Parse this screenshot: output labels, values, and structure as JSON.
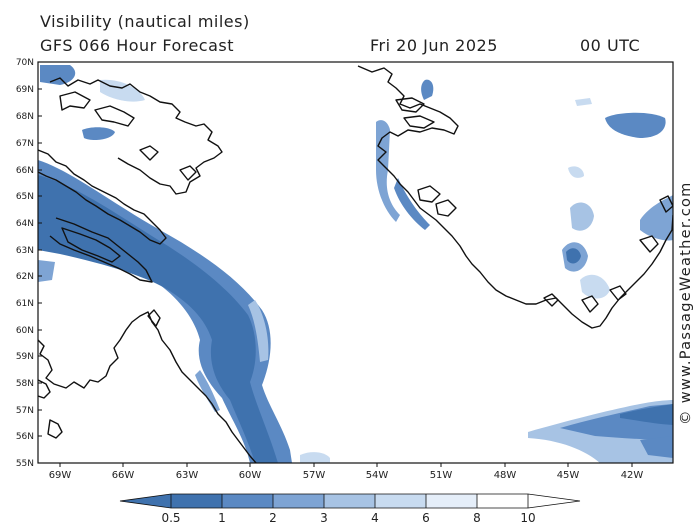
{
  "title": "Visibility (nautical miles)",
  "forecast": "GFS 066 Hour Forecast",
  "date": "Fri 20 Jun 2025",
  "time": "00 UTC",
  "credit": "© www.PassageWeather.com",
  "lat_labels": [
    "70N",
    "69N",
    "68N",
    "67N",
    "66N",
    "65N",
    "64N",
    "63N",
    "62N",
    "61N",
    "60N",
    "59N",
    "58N",
    "57N",
    "56N",
    "55N"
  ],
  "lon_labels": [
    "69W",
    "66W",
    "63W",
    "60W",
    "57W",
    "54W",
    "51W",
    "48W",
    "45W",
    "42W"
  ],
  "colorbar": {
    "labels": [
      "0.5",
      "1",
      "2",
      "3",
      "4",
      "6",
      "8",
      "10"
    ],
    "colors": [
      "#3f72ae",
      "#5b89c3",
      "#7ea4d4",
      "#a7c3e4",
      "#c8dbf0",
      "#e5eef9",
      "#ffffff"
    ]
  }
}
